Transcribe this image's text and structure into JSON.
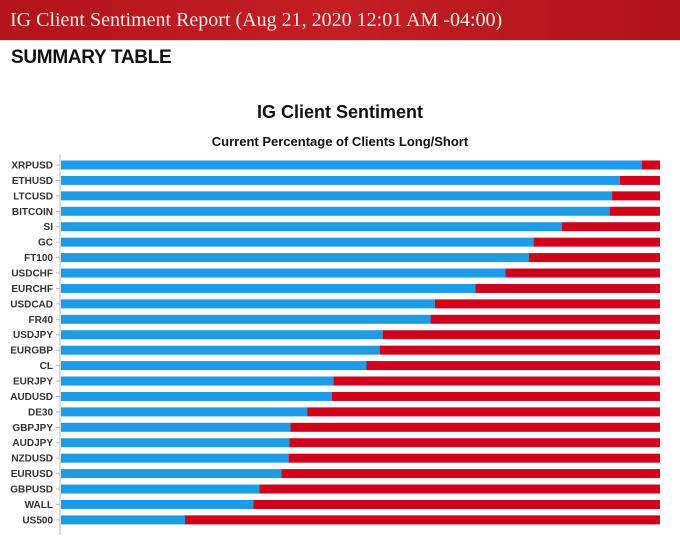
{
  "header": {
    "title": "IG Client Sentiment Report (Aug 21, 2020 12:01 AM -04:00)"
  },
  "section": {
    "title": "SUMMARY TABLE"
  },
  "chart_data": {
    "type": "bar",
    "orientation": "horizontal-stacked",
    "title": "IG Client Sentiment",
    "subtitle": "Current Percentage of Clients Long/Short",
    "categories": [
      "XRPUSD",
      "ETHUSD",
      "LTCUSD",
      "BITCOIN",
      "SI",
      "GC",
      "FT100",
      "USDCHF",
      "EURCHF",
      "USDCAD",
      "FR40",
      "USDJPY",
      "EURGBP",
      "CL",
      "EURJPY",
      "AUDUSD",
      "DE30",
      "GBPJPY",
      "AUDJPY",
      "NZDUSD",
      "EURUSD",
      "GBPUSD",
      "WALL",
      "US500"
    ],
    "series": [
      {
        "name": "Long",
        "color": "#1e9be6",
        "values": [
          97,
          93.3,
          92,
          91.6,
          83.6,
          78.9,
          78.1,
          74.2,
          69.2,
          62.4,
          61.7,
          53.7,
          53.2,
          51,
          45.5,
          45.2,
          41.1,
          38.3,
          38.1,
          38,
          36.8,
          33.1,
          32.1,
          20.7
        ]
      },
      {
        "name": "Short",
        "color": "#d0021b",
        "values": [
          3,
          6.7,
          8,
          8.4,
          16.4,
          21.1,
          21.9,
          25.8,
          30.8,
          37.6,
          38.3,
          46.3,
          46.8,
          49,
          54.5,
          54.8,
          58.9,
          61.7,
          61.9,
          62,
          63.2,
          66.9,
          67.9,
          79.3
        ]
      }
    ],
    "xlim": [
      0,
      100
    ],
    "grid": false
  }
}
